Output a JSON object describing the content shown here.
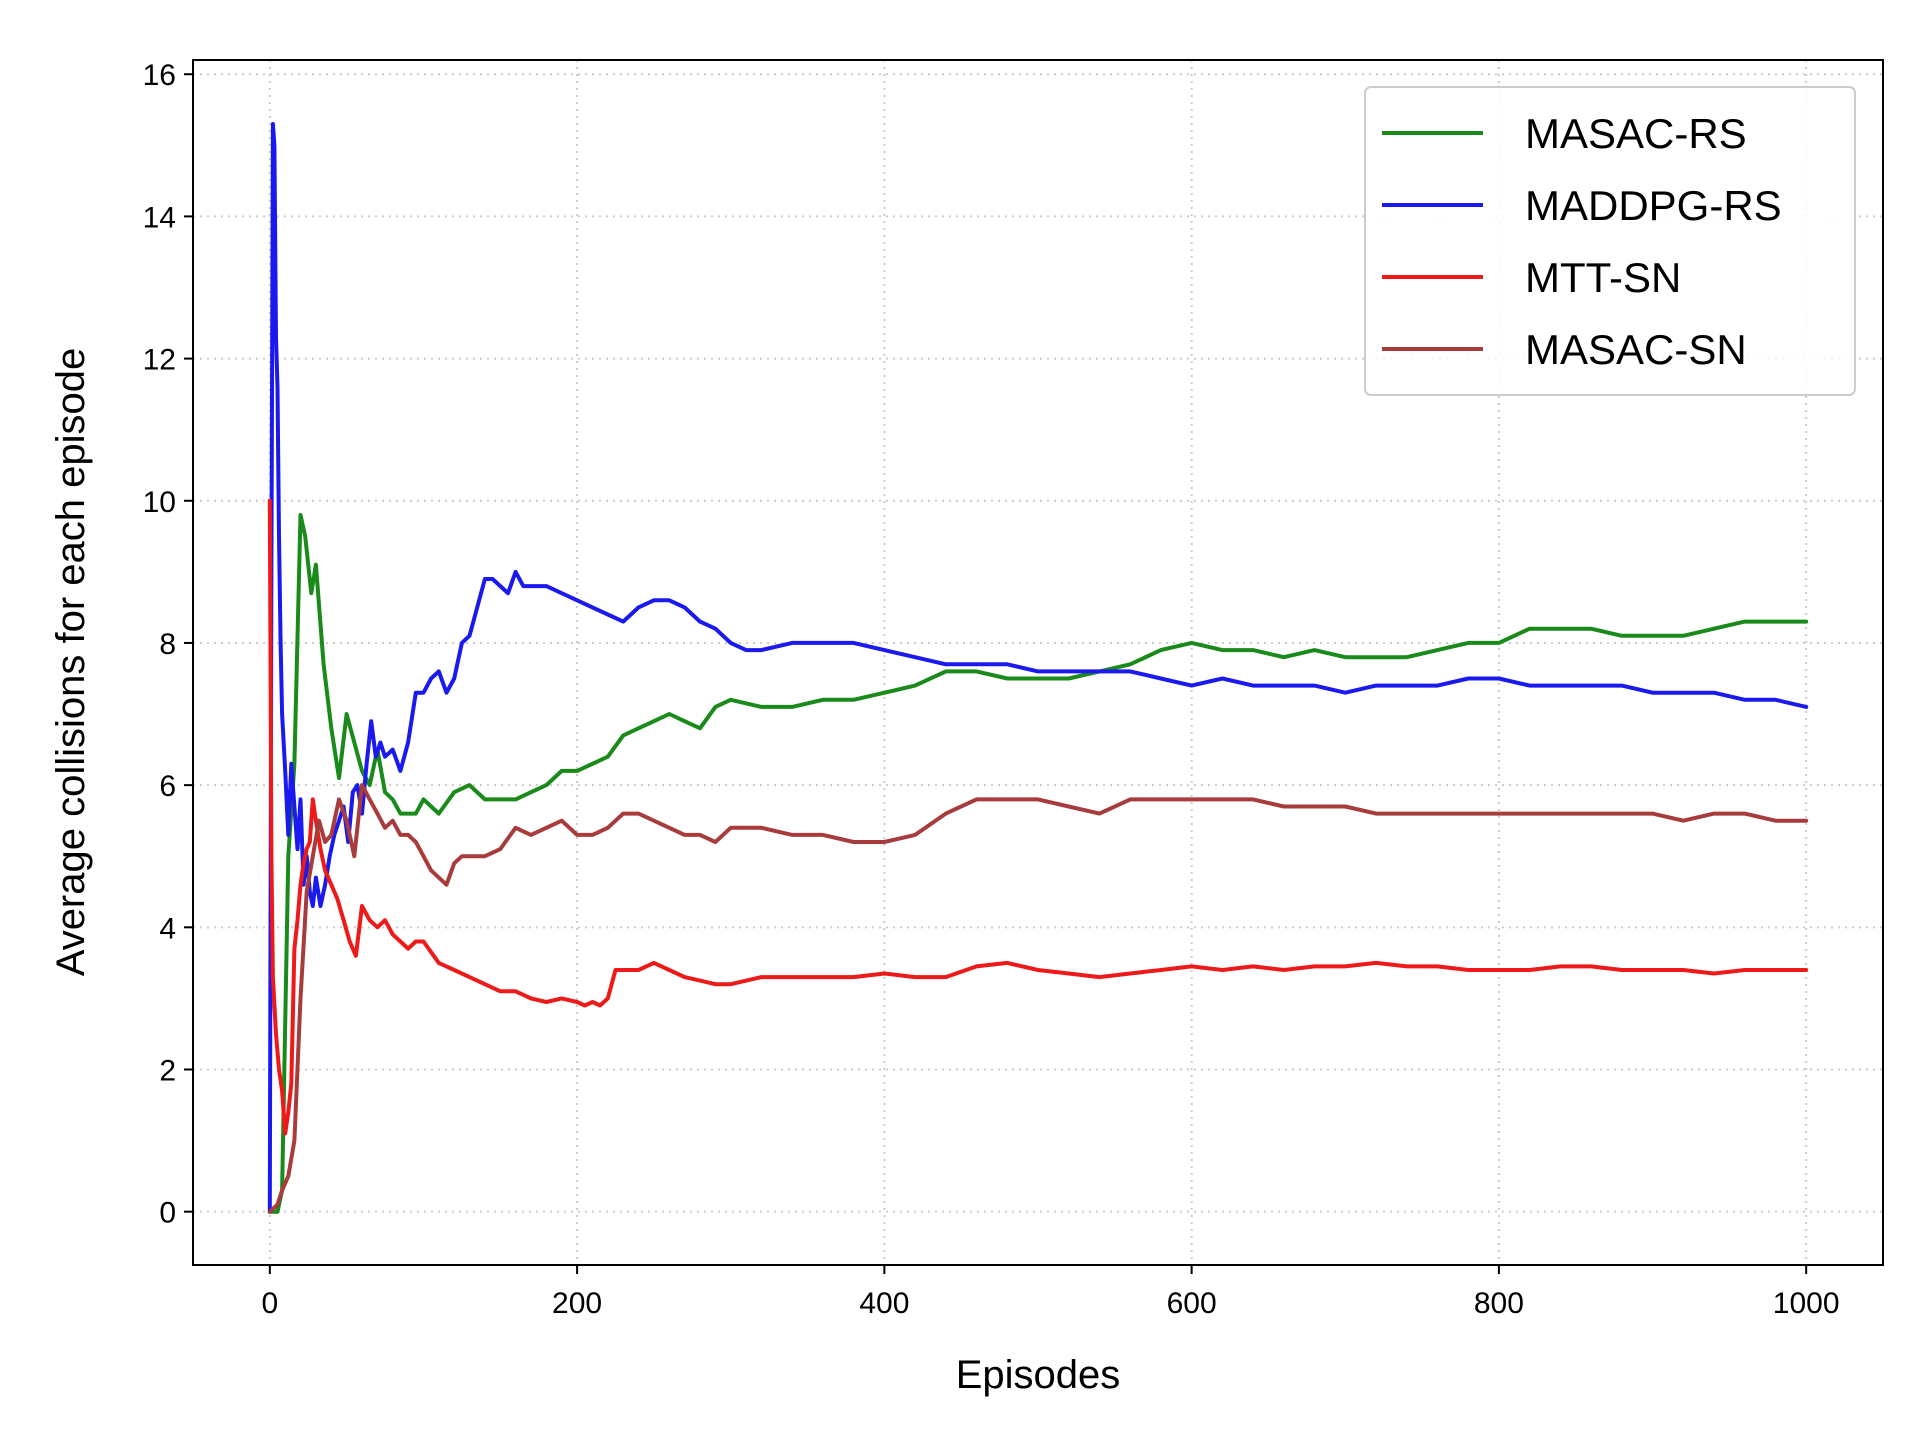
{
  "chart_data": {
    "type": "line",
    "xlabel": "Episodes",
    "ylabel": "Average collisions for each episode",
    "xlim": [
      -50,
      1050
    ],
    "ylim": [
      -0.75,
      16.2
    ],
    "xticks": [
      0,
      200,
      400,
      600,
      800,
      1000
    ],
    "yticks": [
      0,
      2,
      4,
      6,
      8,
      10,
      12,
      14,
      16
    ],
    "grid": true,
    "legend_position": "top-right",
    "series": [
      {
        "name": "MASAC-RS",
        "color": "#1a8a1a",
        "x": [
          0,
          5,
          8,
          12,
          16,
          20,
          23,
          27,
          30,
          35,
          40,
          45,
          50,
          55,
          60,
          65,
          70,
          75,
          80,
          85,
          90,
          95,
          100,
          110,
          120,
          130,
          140,
          150,
          160,
          170,
          180,
          190,
          200,
          210,
          220,
          230,
          240,
          250,
          260,
          270,
          280,
          290,
          300,
          320,
          340,
          360,
          380,
          400,
          420,
          440,
          460,
          480,
          500,
          520,
          540,
          560,
          580,
          600,
          620,
          640,
          660,
          680,
          700,
          720,
          740,
          760,
          780,
          800,
          820,
          840,
          860,
          880,
          900,
          920,
          940,
          960,
          980,
          1000
        ],
        "y": [
          0,
          0,
          0.3,
          5,
          6.3,
          9.8,
          9.5,
          8.7,
          9.1,
          7.7,
          6.8,
          6.1,
          7.0,
          6.6,
          6.2,
          6.0,
          6.5,
          5.9,
          5.8,
          5.6,
          5.6,
          5.6,
          5.8,
          5.6,
          5.9,
          6.0,
          5.8,
          5.8,
          5.8,
          5.9,
          6.0,
          6.2,
          6.2,
          6.3,
          6.4,
          6.7,
          6.8,
          6.9,
          7.0,
          6.9,
          6.8,
          7.1,
          7.2,
          7.1,
          7.1,
          7.2,
          7.2,
          7.3,
          7.4,
          7.6,
          7.6,
          7.5,
          7.5,
          7.5,
          7.6,
          7.7,
          7.9,
          8.0,
          7.9,
          7.9,
          7.8,
          7.9,
          7.8,
          7.8,
          7.8,
          7.9,
          8.0,
          8.0,
          8.2,
          8.2,
          8.2,
          8.1,
          8.1,
          8.1,
          8.2,
          8.3,
          8.3,
          8.3
        ]
      },
      {
        "name": "MADDPG-RS",
        "color": "#1a1aee",
        "x": [
          0,
          1,
          2,
          3,
          4,
          5,
          6,
          7,
          8,
          10,
          12,
          14,
          16,
          18,
          20,
          22,
          24,
          26,
          28,
          30,
          33,
          36,
          39,
          42,
          45,
          48,
          51,
          54,
          57,
          60,
          63,
          66,
          69,
          72,
          75,
          80,
          85,
          90,
          95,
          100,
          105,
          110,
          115,
          120,
          125,
          130,
          135,
          140,
          145,
          150,
          155,
          160,
          165,
          170,
          180,
          190,
          200,
          210,
          220,
          230,
          240,
          250,
          260,
          270,
          280,
          290,
          300,
          310,
          320,
          340,
          360,
          380,
          400,
          420,
          440,
          460,
          480,
          500,
          520,
          540,
          560,
          580,
          600,
          620,
          640,
          660,
          680,
          700,
          720,
          740,
          760,
          780,
          800,
          820,
          840,
          860,
          880,
          900,
          920,
          940,
          960,
          980,
          1000
        ],
        "y": [
          0,
          9.0,
          15.3,
          15.0,
          12.3,
          11.6,
          9.5,
          8.0,
          7.0,
          6.2,
          5.3,
          6.3,
          5.7,
          5.1,
          5.8,
          4.6,
          5.0,
          4.5,
          4.3,
          4.7,
          4.3,
          4.6,
          5.0,
          5.3,
          5.5,
          5.7,
          5.2,
          5.9,
          6.0,
          5.6,
          6.3,
          6.9,
          6.4,
          6.6,
          6.4,
          6.5,
          6.2,
          6.6,
          7.3,
          7.3,
          7.5,
          7.6,
          7.3,
          7.5,
          8.0,
          8.1,
          8.5,
          8.9,
          8.9,
          8.8,
          8.7,
          9.0,
          8.8,
          8.8,
          8.8,
          8.7,
          8.6,
          8.5,
          8.4,
          8.3,
          8.5,
          8.6,
          8.6,
          8.5,
          8.3,
          8.2,
          8.0,
          7.9,
          7.9,
          8.0,
          8.0,
          8.0,
          7.9,
          7.8,
          7.7,
          7.7,
          7.7,
          7.6,
          7.6,
          7.6,
          7.6,
          7.5,
          7.4,
          7.5,
          7.4,
          7.4,
          7.4,
          7.3,
          7.4,
          7.4,
          7.4,
          7.5,
          7.5,
          7.4,
          7.4,
          7.4,
          7.4,
          7.3,
          7.3,
          7.3,
          7.2,
          7.2,
          7.1
        ]
      },
      {
        "name": "MTT-SN",
        "color": "#ee1a1a",
        "x": [
          0,
          1,
          2,
          4,
          6,
          8,
          10,
          12,
          14,
          16,
          18,
          20,
          22,
          24,
          26,
          28,
          30,
          33,
          36,
          40,
          44,
          48,
          52,
          56,
          60,
          65,
          70,
          75,
          80,
          85,
          90,
          95,
          100,
          110,
          120,
          130,
          140,
          150,
          160,
          170,
          180,
          190,
          200,
          205,
          210,
          215,
          220,
          225,
          230,
          240,
          250,
          260,
          270,
          280,
          290,
          300,
          320,
          340,
          360,
          380,
          400,
          420,
          440,
          460,
          480,
          500,
          520,
          540,
          560,
          580,
          600,
          620,
          640,
          660,
          680,
          700,
          720,
          740,
          760,
          780,
          800,
          820,
          840,
          860,
          880,
          900,
          920,
          940,
          960,
          980,
          1000
        ],
        "y": [
          10.0,
          5.0,
          3.3,
          2.5,
          2.0,
          1.7,
          1.1,
          1.4,
          1.8,
          3.7,
          4.1,
          4.6,
          4.9,
          5.1,
          5.2,
          5.8,
          5.5,
          5.1,
          4.8,
          4.6,
          4.4,
          4.1,
          3.8,
          3.6,
          4.3,
          4.1,
          4.0,
          4.1,
          3.9,
          3.8,
          3.7,
          3.8,
          3.8,
          3.5,
          3.4,
          3.3,
          3.2,
          3.1,
          3.1,
          3.0,
          2.95,
          3.0,
          2.95,
          2.9,
          2.95,
          2.9,
          3.0,
          3.4,
          3.4,
          3.4,
          3.5,
          3.4,
          3.3,
          3.25,
          3.2,
          3.2,
          3.3,
          3.3,
          3.3,
          3.3,
          3.35,
          3.3,
          3.3,
          3.45,
          3.5,
          3.4,
          3.35,
          3.3,
          3.35,
          3.4,
          3.45,
          3.4,
          3.45,
          3.4,
          3.45,
          3.45,
          3.5,
          3.45,
          3.45,
          3.4,
          3.4,
          3.4,
          3.45,
          3.45,
          3.4,
          3.4,
          3.4,
          3.35,
          3.4,
          3.4,
          3.4
        ]
      },
      {
        "name": "MASAC-SN",
        "color": "#a83c3c",
        "x": [
          0,
          5,
          8,
          12,
          16,
          20,
          24,
          28,
          32,
          36,
          40,
          45,
          50,
          55,
          60,
          65,
          70,
          75,
          80,
          85,
          90,
          95,
          100,
          105,
          110,
          115,
          120,
          125,
          130,
          140,
          150,
          160,
          170,
          180,
          190,
          200,
          210,
          220,
          230,
          240,
          250,
          260,
          270,
          280,
          290,
          300,
          320,
          340,
          360,
          380,
          400,
          420,
          440,
          460,
          480,
          500,
          520,
          540,
          560,
          580,
          600,
          620,
          640,
          660,
          680,
          700,
          720,
          740,
          760,
          780,
          800,
          820,
          840,
          860,
          880,
          900,
          920,
          940,
          960,
          980,
          1000
        ],
        "y": [
          0,
          0.1,
          0.3,
          0.5,
          1.0,
          3.0,
          4.5,
          5.0,
          5.5,
          5.2,
          5.3,
          5.8,
          5.5,
          5.0,
          6.0,
          5.8,
          5.6,
          5.4,
          5.5,
          5.3,
          5.3,
          5.2,
          5.0,
          4.8,
          4.7,
          4.6,
          4.9,
          5.0,
          5.0,
          5.0,
          5.1,
          5.4,
          5.3,
          5.4,
          5.5,
          5.3,
          5.3,
          5.4,
          5.6,
          5.6,
          5.5,
          5.4,
          5.3,
          5.3,
          5.2,
          5.4,
          5.4,
          5.3,
          5.3,
          5.2,
          5.2,
          5.3,
          5.6,
          5.8,
          5.8,
          5.8,
          5.7,
          5.6,
          5.8,
          5.8,
          5.8,
          5.8,
          5.8,
          5.7,
          5.7,
          5.7,
          5.6,
          5.6,
          5.6,
          5.6,
          5.6,
          5.6,
          5.6,
          5.6,
          5.6,
          5.6,
          5.5,
          5.6,
          5.6,
          5.5,
          5.5
        ]
      }
    ]
  }
}
